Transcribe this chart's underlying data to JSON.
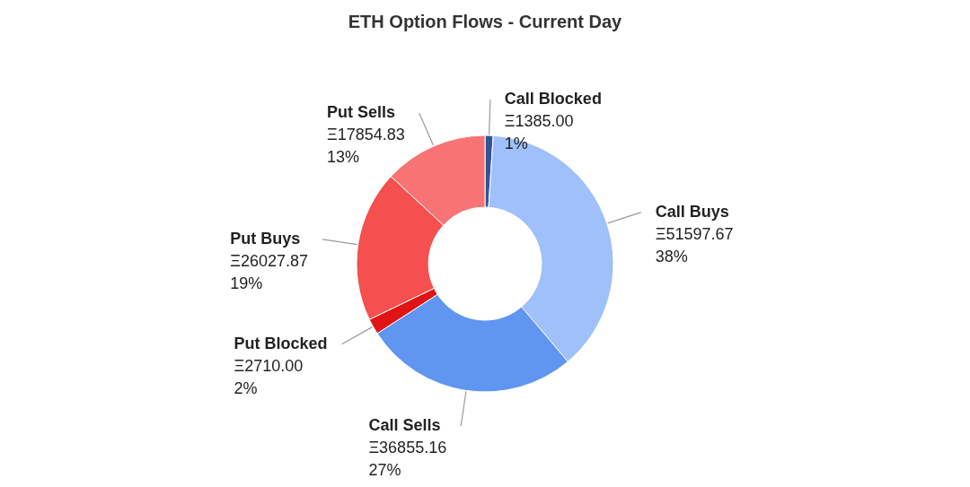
{
  "chart_data": {
    "type": "donut",
    "title": "ETH Option Flows - Current Day",
    "categories": [
      "Call Blocked",
      "Call Buys",
      "Call Sells",
      "Put Blocked",
      "Put Buys",
      "Put Sells"
    ],
    "values": [
      1385.0,
      51597.67,
      36855.16,
      2710.0,
      26027.87,
      17854.83
    ],
    "colors": [
      "#2f5597",
      "#9fc0f8",
      "#6095f0",
      "#e01414",
      "#f54f4f",
      "#f87474"
    ],
    "value_labels": [
      "Ξ1385.00\n1%",
      "Ξ51597.67\n38%",
      "Ξ36855.16\n27%",
      "Ξ2710.00\n2%",
      "Ξ26027.87\n19%",
      "Ξ17854.83\n13%"
    ]
  }
}
